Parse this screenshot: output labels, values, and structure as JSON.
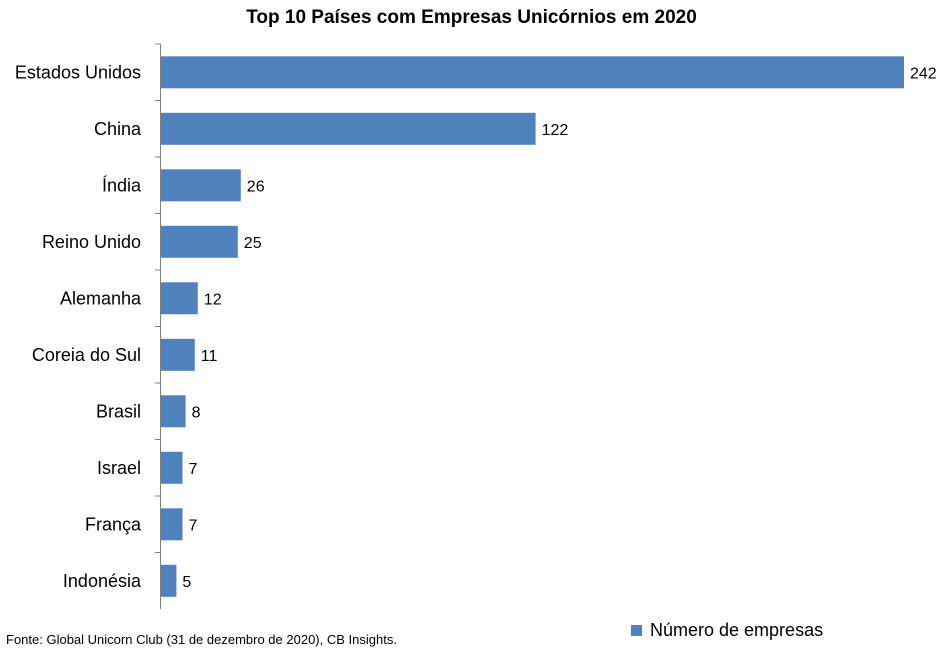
{
  "chart_data": {
    "type": "bar",
    "orientation": "horizontal",
    "title": "Top 10 Países com Empresas Unicórnios em 2020",
    "categories": [
      "Estados Unidos",
      "China",
      "Índia",
      "Reino Unido",
      "Alemanha",
      "Coreia do Sul",
      "Brasil",
      "Israel",
      "França",
      "Indonésia"
    ],
    "series": [
      {
        "name": "Número de empresas",
        "values": [
          242,
          122,
          26,
          25,
          12,
          11,
          8,
          7,
          7,
          5
        ],
        "color": "#4F81BD"
      }
    ],
    "xlim": [
      0,
      242
    ],
    "grid": false,
    "legend_position": "bottom-right",
    "data_labels": true,
    "source": "Fonte: Global Unicorn Club (31 de dezembro de 2020), CB Insights."
  }
}
